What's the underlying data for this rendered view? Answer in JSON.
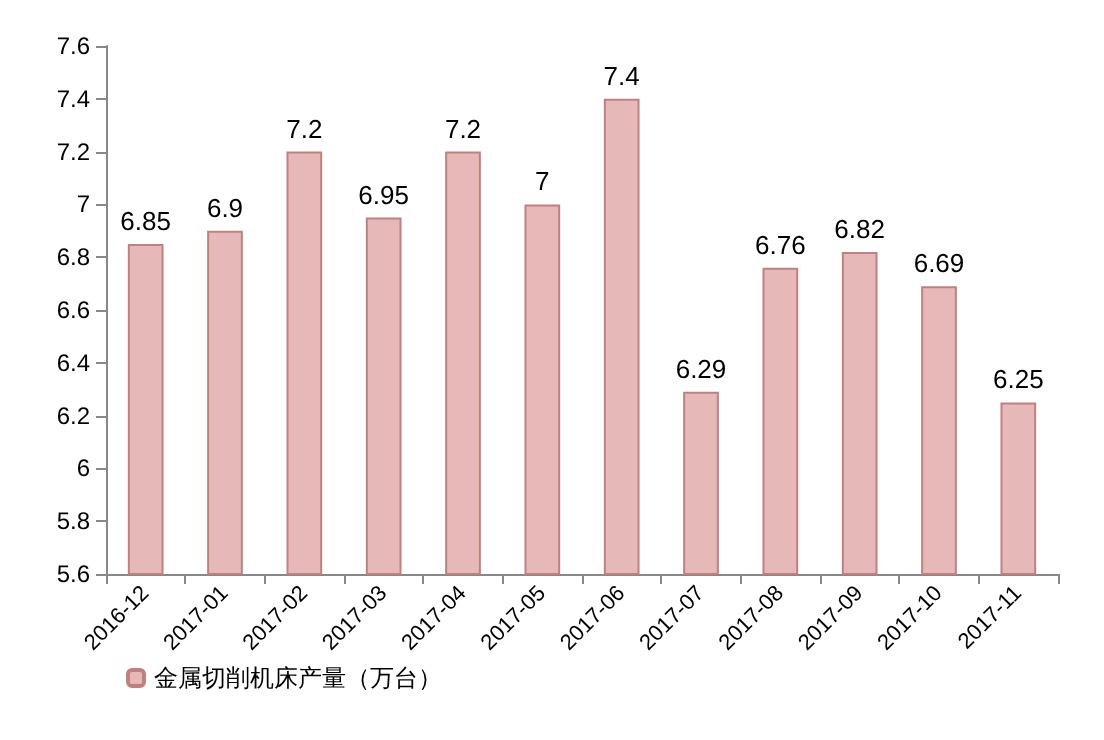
{
  "chart_data": {
    "type": "bar",
    "categories": [
      "2016-12",
      "2017-01",
      "2017-02",
      "2017-03",
      "2017-04",
      "2017-05",
      "2017-06",
      "2017-07",
      "2017-08",
      "2017-09",
      "2017-10",
      "2017-11"
    ],
    "series": [
      {
        "name": "金属切削机床产量（万台）",
        "color": "#e6b9b8",
        "values": [
          6.85,
          6.9,
          7.2,
          6.95,
          7.2,
          7,
          7.4,
          6.29,
          6.76,
          6.82,
          6.69,
          6.25
        ]
      }
    ],
    "ylim": [
      5.6,
      7.6
    ],
    "yticks": [
      5.6,
      5.8,
      6,
      6.2,
      6.4,
      6.6,
      6.8,
      7,
      7.2,
      7.4,
      7.6
    ],
    "grid": false,
    "legend": "bottom left",
    "data_labels": true
  }
}
